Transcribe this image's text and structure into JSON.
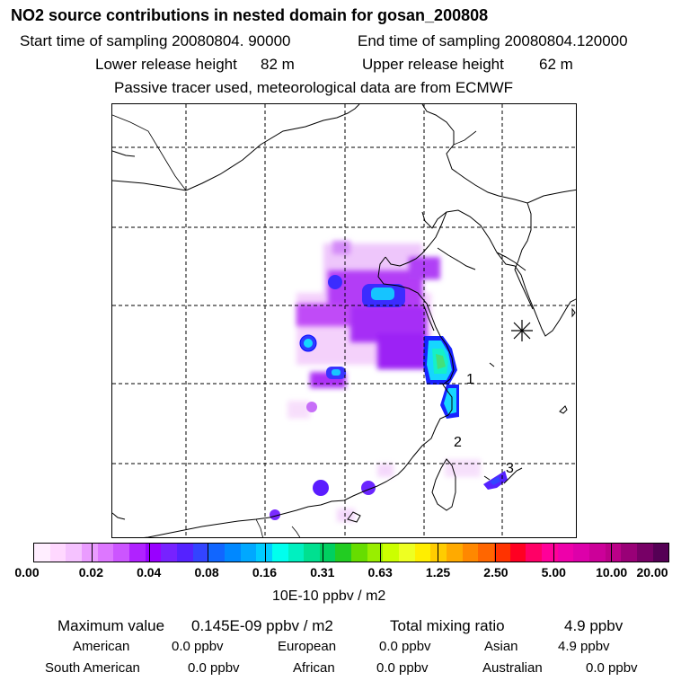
{
  "header": {
    "title": "NO2 source contributions in nested domain for gosan_200808",
    "start_label": "Start time of sampling 20080804. 90000",
    "end_label": "End time of sampling 20080804.120000",
    "lower_label": "Lower release height",
    "lower_value": "82 m",
    "upper_label": "Upper release height",
    "upper_value": "62 m",
    "note": "Passive tracer used, meteorological data are from ECMWF"
  },
  "map": {
    "markers": [
      "1",
      "2",
      "3"
    ],
    "receptor_symbol": "gosan-station-asterisk"
  },
  "colorbar": {
    "ticks": [
      "0.00",
      "0.02",
      "0.04",
      "0.08",
      "0.16",
      "0.31",
      "0.63",
      "1.25",
      "2.50",
      "5.00",
      "10.00",
      "20.00"
    ],
    "unit": "10E-10 ppbv / m2",
    "colors": [
      "#ffeeff",
      "#ffd8ff",
      "#f5c2ff",
      "#ea9cff",
      "#dd77ff",
      "#cc55ff",
      "#b022ff",
      "#9900ff",
      "#7722ff",
      "#5522ff",
      "#3344ff",
      "#1166ff",
      "#0088ff",
      "#00a8ff",
      "#00ccff",
      "#00ffee",
      "#00f0c0",
      "#00e090",
      "#00d060",
      "#22cc22",
      "#66dd00",
      "#99ee00",
      "#ccff00",
      "#eeff22",
      "#ffee00",
      "#ffcc00",
      "#ffaa00",
      "#ff8800",
      "#ff6600",
      "#ff3300",
      "#ff0022",
      "#ff0066",
      "#ff0099",
      "#ee00aa",
      "#dd00aa",
      "#cc0099",
      "#bb0088",
      "#990077",
      "#770066",
      "#550055"
    ]
  },
  "summary": {
    "max_label": "Maximum value",
    "max_value": "0.145E-09 ppbv / m2",
    "total_label": "Total mixing ratio",
    "total_value": "4.9 ppbv",
    "regions": [
      {
        "name": "American",
        "value": "0.0 ppbv"
      },
      {
        "name": "European",
        "value": "0.0 ppbv"
      },
      {
        "name": "Asian",
        "value": "4.9 ppbv"
      },
      {
        "name": "South American",
        "value": "0.0 ppbv"
      },
      {
        "name": "African",
        "value": "0.0 ppbv"
      },
      {
        "name": "Australian",
        "value": "0.0 ppbv"
      }
    ]
  }
}
